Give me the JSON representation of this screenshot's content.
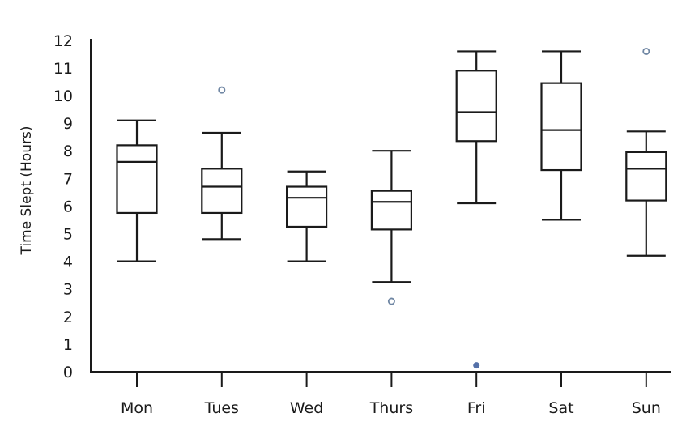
{
  "chart_data": {
    "type": "box",
    "title": "",
    "xlabel": "",
    "ylabel": "Time Slept (Hours)",
    "ylim": [
      0,
      12
    ],
    "yticks": [
      0,
      1,
      2,
      3,
      4,
      5,
      6,
      7,
      8,
      9,
      10,
      11,
      12
    ],
    "grid": false,
    "legend": null,
    "categories": [
      "Mon",
      "Tues",
      "Wed",
      "Thurs",
      "Fri",
      "Sat",
      "Sun"
    ],
    "boxes": [
      {
        "label": "Mon",
        "whisker_low": 4.0,
        "q1": 5.75,
        "median": 7.6,
        "q3": 8.2,
        "whisker_high": 9.1,
        "outliers": []
      },
      {
        "label": "Tues",
        "whisker_low": 4.8,
        "q1": 5.75,
        "median": 6.7,
        "q3": 7.35,
        "whisker_high": 8.65,
        "outliers": [
          {
            "value": 10.2,
            "style": "hollow"
          }
        ]
      },
      {
        "label": "Wed",
        "whisker_low": 4.0,
        "q1": 5.25,
        "median": 6.3,
        "q3": 6.7,
        "whisker_high": 7.25,
        "outliers": []
      },
      {
        "label": "Thurs",
        "whisker_low": 3.25,
        "q1": 5.15,
        "median": 6.15,
        "q3": 6.55,
        "whisker_high": 8.0,
        "outliers": [
          {
            "value": 2.55,
            "style": "hollow"
          }
        ]
      },
      {
        "label": "Fri",
        "whisker_low": 6.1,
        "q1": 8.35,
        "median": 9.4,
        "q3": 10.9,
        "whisker_high": 11.6,
        "outliers": [
          {
            "value": 0.2,
            "style": "filled"
          }
        ]
      },
      {
        "label": "Sat",
        "whisker_low": 5.5,
        "q1": 7.3,
        "median": 8.75,
        "q3": 10.45,
        "whisker_high": 11.6,
        "outliers": []
      },
      {
        "label": "Sun",
        "whisker_low": 4.2,
        "q1": 6.2,
        "median": 7.35,
        "q3": 7.95,
        "whisker_high": 8.7,
        "outliers": [
          {
            "value": 11.6,
            "style": "hollow"
          }
        ]
      }
    ],
    "colors": {
      "box_stroke": "#1a1a1a",
      "outlier_hollow": "#6f86a3",
      "outlier_filled": "#5470a8"
    }
  }
}
